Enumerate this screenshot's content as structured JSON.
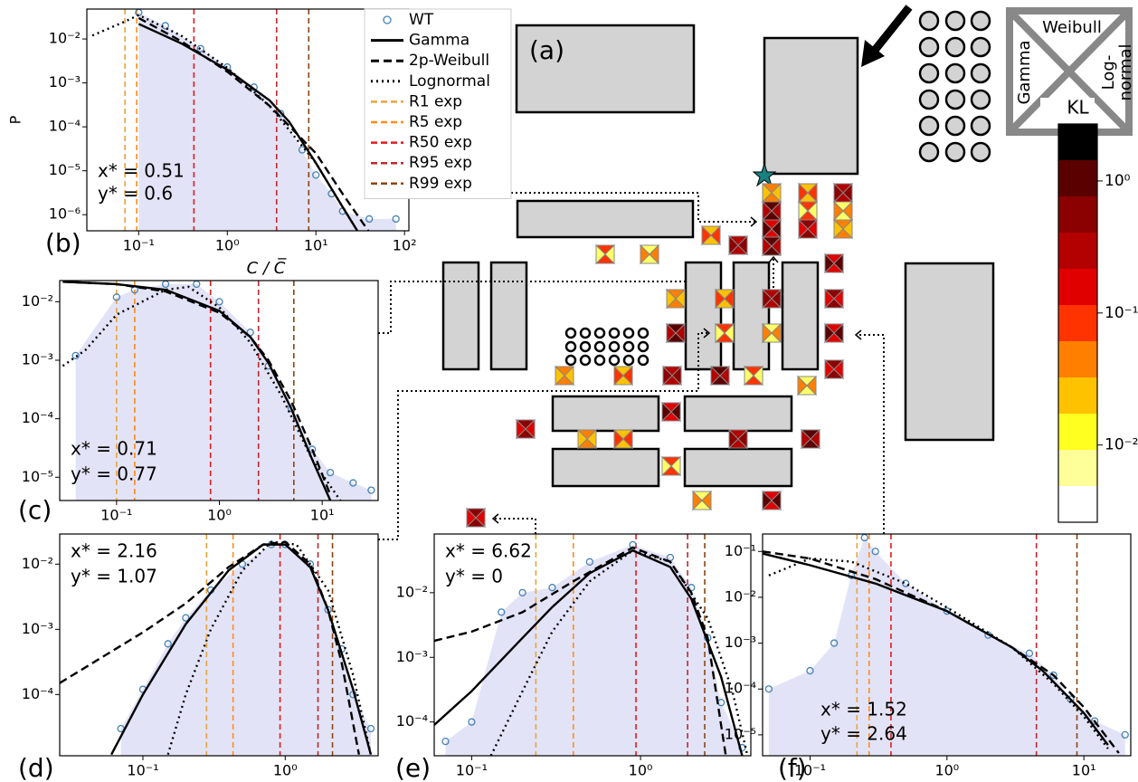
{
  "diagram": {
    "label": "(a)",
    "legend_top": "Weibull",
    "legend_left": "Gamma",
    "legend_right": [
      "Log-",
      "normal"
    ]
  },
  "chart_data": [
    {
      "type": "line",
      "panel": "(b)",
      "xlabel": "C / C̅",
      "ylabel": "P",
      "xscale": "log",
      "yscale": "log",
      "xlim": [
        0.026,
        112
      ],
      "ylim": [
        4.3e-07,
        0.048
      ],
      "xticks": [
        {
          "value": 0.1,
          "label": "10⁻¹"
        },
        {
          "value": 1,
          "label": "10⁰"
        },
        {
          "value": 10,
          "label": "10¹"
        },
        {
          "value": 100,
          "label": "10²"
        }
      ],
      "yticks": [
        {
          "value": 0.01,
          "label": "10⁻²"
        },
        {
          "value": 0.001,
          "label": "10⁻³"
        },
        {
          "value": 0.0001,
          "label": "10⁻⁴"
        },
        {
          "value": 1e-05,
          "label": "10⁻⁵"
        },
        {
          "value": 1e-06,
          "label": "10⁻⁶"
        }
      ],
      "annotations": [
        "x* = 0.51",
        "y* = 0.6"
      ],
      "hist_color": "#e3e3f7",
      "legend": true,
      "series": [
        {
          "name": "WT",
          "style": "markers",
          "color": "#4682b4",
          "x": [
            0.1,
            0.2,
            0.5,
            1,
            2,
            4,
            7,
            10,
            15,
            20,
            40,
            80
          ],
          "values": [
            0.04,
            0.02,
            0.006,
            0.0023,
            0.0008,
            0.0002,
            3e-05,
            8e-06,
            3e-06,
            1.2e-06,
            8e-07,
            8e-07
          ]
        },
        {
          "name": "Gamma",
          "style": "solid",
          "color": "#000000",
          "x": [
            0.1,
            0.3,
            1,
            3,
            5,
            10,
            20,
            30
          ],
          "values": [
            0.022,
            0.008,
            0.002,
            0.0004,
            0.00013,
            1.5e-05,
            1.5e-06,
            4e-07
          ]
        },
        {
          "name": "2p-Weibull",
          "style": "dashed",
          "color": "#000000",
          "x": [
            0.1,
            0.3,
            1,
            3,
            10,
            20,
            40
          ],
          "values": [
            0.03,
            0.009,
            0.0018,
            0.0003,
            2.5e-05,
            3e-06,
            4e-07
          ]
        },
        {
          "name": "Lognormal",
          "style": "dotted",
          "color": "#000000",
          "x": [
            0.03,
            0.07,
            0.1,
            0.3,
            1,
            3,
            10,
            20,
            30
          ],
          "values": [
            0.012,
            0.025,
            0.035,
            0.012,
            0.0022,
            0.0003,
            1.5e-05,
            1.5e-06,
            4e-07
          ]
        }
      ],
      "vlines": [
        {
          "name": "R1 exp",
          "x": 0.07,
          "color": "#e8a33d"
        },
        {
          "name": "R5 exp",
          "x": 0.095,
          "color": "#ff8c1a"
        },
        {
          "name": "R50 exp",
          "x": 0.42,
          "color": "#e41a1c"
        },
        {
          "name": "R95 exp",
          "x": 3.6,
          "color": "#c0272d"
        },
        {
          "name": "R99 exp",
          "x": 8.3,
          "color": "#8b4513"
        }
      ]
    },
    {
      "type": "line",
      "panel": "(c)",
      "xscale": "log",
      "yscale": "log",
      "xlim": [
        0.028,
        35
      ],
      "ylim": [
        4e-06,
        0.023
      ],
      "xticks": [
        {
          "value": 0.1,
          "label": "10⁻¹"
        },
        {
          "value": 1,
          "label": "10⁰"
        },
        {
          "value": 10,
          "label": "10¹"
        }
      ],
      "yticks": [
        {
          "value": 0.01,
          "label": "10⁻²"
        },
        {
          "value": 0.001,
          "label": "10⁻³"
        },
        {
          "value": 0.0001,
          "label": "10⁻⁴"
        },
        {
          "value": 1e-05,
          "label": "10⁻⁵"
        }
      ],
      "annotations": [
        "x* = 0.71",
        "y* = 0.77"
      ],
      "hist_color": "#e3e3f7",
      "series": [
        {
          "style": "markers",
          "color": "#4682b4",
          "x": [
            0.04,
            0.1,
            0.15,
            0.3,
            0.6,
            1,
            2,
            3,
            5,
            8,
            12,
            20,
            30
          ],
          "values": [
            0.0012,
            0.012,
            0.016,
            0.02,
            0.02,
            0.01,
            0.003,
            0.0008,
            0.00015,
            3e-05,
            1.2e-05,
            8e-06,
            6e-06
          ]
        },
        {
          "style": "solid",
          "color": "#000000",
          "x": [
            0.03,
            0.1,
            0.3,
            1,
            2,
            3,
            5,
            8,
            12
          ],
          "values": [
            0.022,
            0.02,
            0.016,
            0.007,
            0.0025,
            0.0009,
            0.00015,
            2e-05,
            4e-06
          ]
        },
        {
          "style": "dashed",
          "color": "#000000",
          "x": [
            0.03,
            0.1,
            0.3,
            1,
            2,
            3,
            5,
            8,
            12
          ],
          "values": [
            0.022,
            0.02,
            0.015,
            0.0065,
            0.0025,
            0.001,
            0.0002,
            3e-05,
            5e-06
          ]
        },
        {
          "style": "dotted",
          "color": "#000000",
          "x": [
            0.03,
            0.05,
            0.1,
            0.3,
            0.5,
            1,
            2,
            4,
            8,
            15
          ],
          "values": [
            0.0008,
            0.0015,
            0.006,
            0.016,
            0.018,
            0.008,
            0.002,
            0.00025,
            2e-05,
            4e-06
          ]
        }
      ],
      "vlines": [
        {
          "x": 0.1,
          "color": "#e8a33d"
        },
        {
          "x": 0.15,
          "color": "#ff8c1a"
        },
        {
          "x": 0.82,
          "color": "#e41a1c"
        },
        {
          "x": 2.4,
          "color": "#c0272d"
        },
        {
          "x": 5.3,
          "color": "#8b4513"
        }
      ]
    },
    {
      "type": "line",
      "panel": "(d)",
      "xscale": "log",
      "yscale": "log",
      "xlim": [
        0.026,
        4.5
      ],
      "ylim": [
        1.15e-05,
        0.029
      ],
      "xticks": [
        {
          "value": 0.1,
          "label": "10⁻¹"
        },
        {
          "value": 1,
          "label": "10⁰"
        }
      ],
      "yticks": [
        {
          "value": 0.01,
          "label": "10⁻²"
        },
        {
          "value": 0.001,
          "label": "10⁻³"
        },
        {
          "value": 0.0001,
          "label": "10⁻⁴"
        }
      ],
      "annotations": [
        "x* = 2.16",
        "y* = 1.07"
      ],
      "hist_color": "#e3e3f7",
      "series": [
        {
          "style": "markers",
          "color": "#4682b4",
          "x": [
            0.07,
            0.1,
            0.15,
            0.2,
            0.3,
            0.5,
            0.8,
            1,
            1.5,
            2,
            2.5,
            3,
            4
          ],
          "values": [
            3e-05,
            0.00012,
            0.0006,
            0.0015,
            0.004,
            0.01,
            0.02,
            0.02,
            0.01,
            0.002,
            0.0005,
            0.0001,
            3e-05
          ]
        },
        {
          "style": "solid",
          "color": "#000000",
          "x": [
            0.06,
            0.1,
            0.2,
            0.4,
            0.7,
            1,
            1.5,
            2,
            3,
            4
          ],
          "values": [
            1.2e-05,
            0.0001,
            0.0012,
            0.008,
            0.02,
            0.02,
            0.009,
            0.002,
            0.00012,
            1.2e-05
          ]
        },
        {
          "style": "dashed",
          "color": "#000000",
          "x": [
            0.026,
            0.1,
            0.2,
            0.4,
            0.7,
            1,
            1.5,
            2,
            2.5,
            3.3
          ],
          "values": [
            0.00015,
            0.0009,
            0.0025,
            0.009,
            0.02,
            0.022,
            0.01,
            0.002,
            0.0003,
            1.2e-05
          ]
        },
        {
          "style": "dotted",
          "color": "#000000",
          "x": [
            0.15,
            0.2,
            0.3,
            0.5,
            0.8,
            1.2,
            2,
            3,
            4
          ],
          "values": [
            1.2e-05,
            0.0001,
            0.001,
            0.008,
            0.022,
            0.02,
            0.004,
            0.0002,
            1.2e-05
          ]
        }
      ],
      "vlines": [
        {
          "x": 0.28,
          "color": "#e8a33d"
        },
        {
          "x": 0.43,
          "color": "#ff8c1a"
        },
        {
          "x": 0.92,
          "color": "#e41a1c"
        },
        {
          "x": 1.7,
          "color": "#c0272d"
        },
        {
          "x": 2.15,
          "color": "#8b4513"
        }
      ]
    },
    {
      "type": "line",
      "panel": "(e)",
      "xscale": "log",
      "yscale": "log",
      "xlim": [
        0.06,
        4.5
      ],
      "ylim": [
        3e-05,
        0.081
      ],
      "xticks": [
        {
          "value": 0.1,
          "label": "10⁻¹"
        },
        {
          "value": 1,
          "label": "10⁰"
        }
      ],
      "yticks": [
        {
          "value": 0.01,
          "label": "10⁻²"
        },
        {
          "value": 0.001,
          "label": "10⁻³"
        },
        {
          "value": 0.0001,
          "label": "10⁻⁴"
        }
      ],
      "annotations": [
        "x* = 6.62",
        "y* = 0"
      ],
      "hist_color": "#e3e3f7",
      "series": [
        {
          "style": "markers",
          "color": "#4682b4",
          "x": [
            0.07,
            0.1,
            0.15,
            0.2,
            0.3,
            0.5,
            0.9,
            1.5,
            2,
            2.5,
            3,
            4
          ],
          "values": [
            5e-05,
            0.0001,
            0.005,
            0.01,
            0.012,
            0.03,
            0.055,
            0.035,
            0.012,
            0.002,
            0.0002,
            4e-05
          ]
        },
        {
          "style": "solid",
          "color": "#000000",
          "x": [
            0.06,
            0.1,
            0.2,
            0.3,
            0.5,
            0.9,
            1.5,
            2,
            3,
            4
          ],
          "values": [
            9e-05,
            0.0003,
            0.002,
            0.006,
            0.02,
            0.045,
            0.025,
            0.008,
            0.0005,
            3e-05
          ]
        },
        {
          "style": "dashed",
          "color": "#000000",
          "x": [
            0.06,
            0.1,
            0.2,
            0.4,
            0.9,
            1.5,
            2,
            2.5,
            3.2
          ],
          "values": [
            0.0018,
            0.0025,
            0.005,
            0.015,
            0.05,
            0.03,
            0.01,
            0.002,
            3e-05
          ]
        },
        {
          "style": "dotted",
          "color": "#000000",
          "x": [
            0.13,
            0.2,
            0.3,
            0.5,
            0.9,
            1.5,
            2.5,
            3.5,
            4.3
          ],
          "values": [
            3e-05,
            0.0003,
            0.0025,
            0.015,
            0.045,
            0.03,
            0.004,
            0.0003,
            3e-05
          ]
        }
      ],
      "vlines": [
        {
          "x": 0.24,
          "color": "#e8a33d"
        },
        {
          "x": 0.4,
          "color": "#ff8c1a"
        },
        {
          "x": 0.94,
          "color": "#e41a1c"
        },
        {
          "x": 1.9,
          "color": "#c0272d"
        },
        {
          "x": 2.4,
          "color": "#8b4513"
        }
      ]
    },
    {
      "type": "line",
      "panel": "(f)",
      "xscale": "log",
      "yscale": "log",
      "xlim": [
        0.045,
        22
      ],
      "ylim": [
        3.5e-06,
        0.24
      ],
      "xticks": [
        {
          "value": 0.1,
          "label": "10⁻¹"
        },
        {
          "value": 1,
          "label": "10⁰"
        },
        {
          "value": 10,
          "label": "10¹"
        }
      ],
      "yticks": [
        {
          "value": 0.1,
          "label": "10⁻¹"
        },
        {
          "value": 0.01,
          "label": "10⁻²"
        },
        {
          "value": 0.001,
          "label": "10⁻³"
        },
        {
          "value": 0.0001,
          "label": "10⁻⁴"
        },
        {
          "value": 1e-05,
          "label": "10⁻⁵"
        }
      ],
      "annotations": [
        "x* = 1.52",
        "y* = 2.64"
      ],
      "hist_color": "#e3e3f7",
      "series": [
        {
          "style": "markers",
          "color": "#4682b4",
          "x": [
            0.05,
            0.1,
            0.15,
            0.2,
            0.25,
            0.3,
            0.5,
            1,
            2,
            4,
            6,
            8,
            12,
            20
          ],
          "values": [
            0.0001,
            0.00025,
            0.001,
            0.03,
            0.2,
            0.1,
            0.02,
            0.005,
            0.0015,
            0.0006,
            0.0002,
            6e-05,
            2e-05,
            1e-05
          ]
        },
        {
          "style": "solid",
          "color": "#000000",
          "x": [
            0.045,
            0.1,
            0.3,
            1,
            3,
            5,
            10,
            15
          ],
          "values": [
            0.09,
            0.05,
            0.02,
            0.005,
            0.0008,
            0.00025,
            3e-05,
            6e-06
          ]
        },
        {
          "style": "dashed",
          "color": "#000000",
          "x": [
            0.045,
            0.1,
            0.3,
            1,
            3,
            6,
            10,
            18
          ],
          "values": [
            0.1,
            0.07,
            0.025,
            0.005,
            0.0008,
            0.0002,
            4e-05,
            4e-06
          ]
        },
        {
          "style": "dotted",
          "color": "#000000",
          "x": [
            0.05,
            0.1,
            0.2,
            0.5,
            1,
            3,
            6,
            10,
            15
          ],
          "values": [
            0.03,
            0.07,
            0.06,
            0.02,
            0.006,
            0.0008,
            0.00013,
            2.5e-05,
            5e-06
          ]
        }
      ],
      "vlines": [
        {
          "x": 0.22,
          "color": "#e8a33d"
        },
        {
          "x": 0.27,
          "color": "#ff8c1a"
        },
        {
          "x": 0.39,
          "color": "#e41a1c"
        },
        {
          "x": 4.5,
          "color": "#c0272d"
        },
        {
          "x": 8.9,
          "color": "#8b4513"
        }
      ]
    },
    {
      "type": "colorbar",
      "title": "KL",
      "yscale": "log",
      "ylim": [
        0.0026,
        2.7
      ],
      "yticks": [
        {
          "value": 1,
          "label": "10⁰"
        },
        {
          "value": 0.1,
          "label": "10⁻¹"
        },
        {
          "value": 0.01,
          "label": "10⁻²"
        }
      ],
      "colors": [
        "#000000",
        "#5a0000",
        "#8b0000",
        "#b30000",
        "#e00000",
        "#ff3300",
        "#ff7f00",
        "#ffc200",
        "#ffff20",
        "#ffff99",
        "#ffffff"
      ]
    }
  ]
}
